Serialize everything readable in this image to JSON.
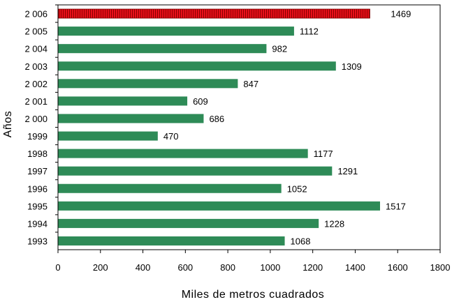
{
  "chart_data": {
    "type": "bar",
    "orientation": "horizontal",
    "xlabel": "Miles de metros cuadrados",
    "ylabel": "Años",
    "xlim": [
      0,
      1800
    ],
    "xticks": [
      0,
      200,
      400,
      600,
      800,
      1000,
      1200,
      1400,
      1600,
      1800
    ],
    "grid": false,
    "legend": "none",
    "categories": [
      "2 006",
      "2 005",
      "2 004",
      "2 003",
      "2 002",
      "2 001",
      "2 000",
      "1999",
      "1998",
      "1997",
      "1996",
      "1995",
      "1994",
      "1993"
    ],
    "values": [
      1469,
      1112,
      982,
      1309,
      847,
      609,
      686,
      470,
      1177,
      1291,
      1052,
      1517,
      1228,
      1068
    ],
    "value_labels": [
      "1469",
      "1112",
      "982",
      "1309",
      "847",
      "609",
      "686",
      "470",
      "1177",
      "1291",
      "1052",
      "1517",
      "1228",
      "1068"
    ],
    "highlight_index": 0,
    "colors": {
      "bar": "#2e8b57",
      "highlight": "#e8101a",
      "highlight_hatch": "#8b0000",
      "axis": "#000000"
    }
  }
}
